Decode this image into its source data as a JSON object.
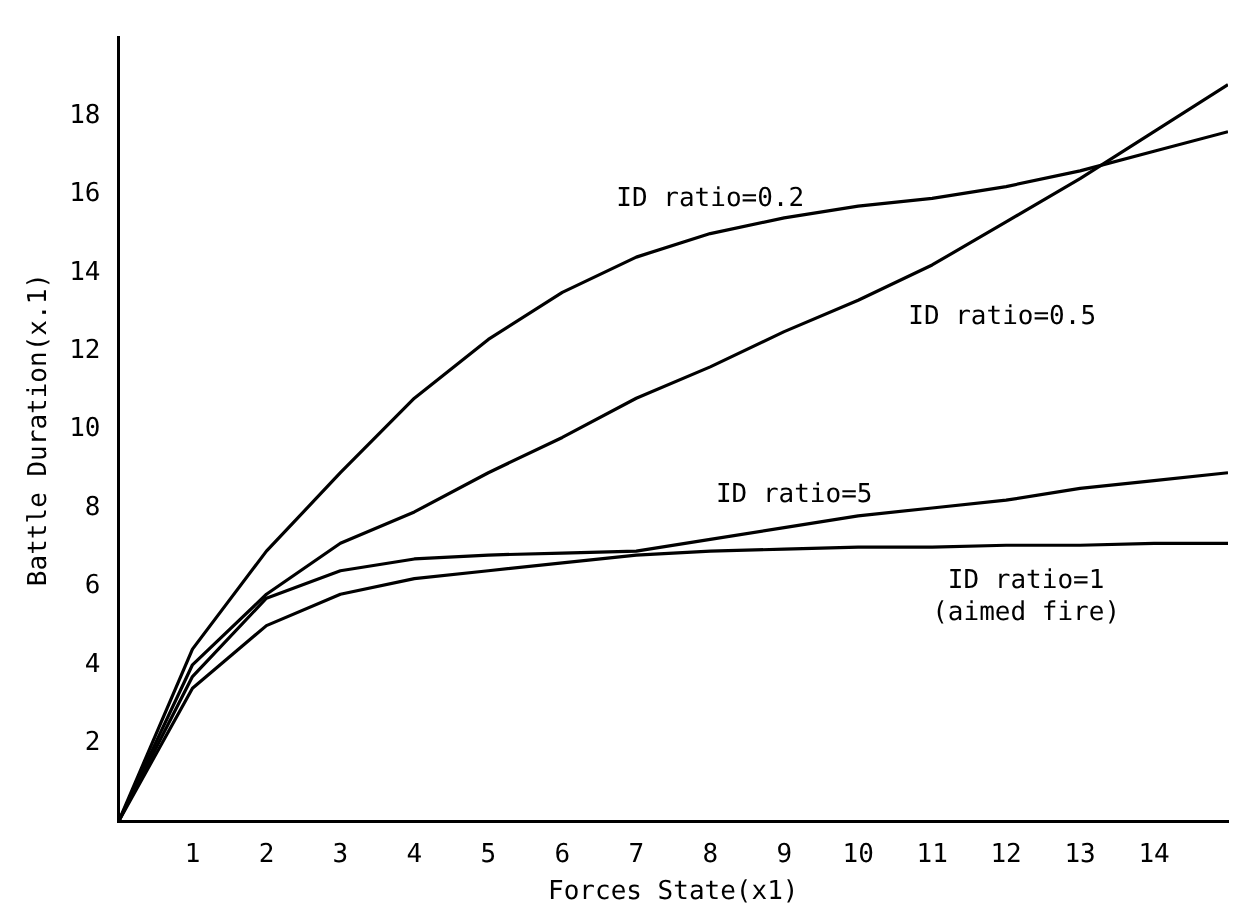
{
  "chart_data": {
    "type": "line",
    "xlabel": "Forces State(x1)",
    "ylabel": "Battle Duration(x.1)",
    "xlim": [
      0,
      15
    ],
    "ylim": [
      0,
      20
    ],
    "xticks": [
      1,
      2,
      3,
      4,
      5,
      6,
      7,
      8,
      9,
      10,
      11,
      12,
      13,
      14
    ],
    "yticks": [
      2,
      4,
      6,
      8,
      10,
      12,
      14,
      16,
      18
    ],
    "grid": false,
    "legend": false,
    "marker": "none",
    "line_style": "solid",
    "x": [
      0,
      1,
      2,
      3,
      4,
      5,
      6,
      7,
      8,
      9,
      10,
      11,
      12,
      13,
      14,
      15
    ],
    "series": [
      {
        "name": "ID ratio=0.2",
        "color": "#000000",
        "values": [
          0,
          4.4,
          6.9,
          8.9,
          10.8,
          12.3,
          13.5,
          14.4,
          15.0,
          15.4,
          15.7,
          15.9,
          16.2,
          16.6,
          17.1,
          17.6
        ]
      },
      {
        "name": "ID ratio=0.5",
        "color": "#000000",
        "values": [
          0,
          4.0,
          5.8,
          7.1,
          7.9,
          8.9,
          9.8,
          10.8,
          11.6,
          12.5,
          13.3,
          14.2,
          15.3,
          16.4,
          17.6,
          18.8
        ]
      },
      {
        "name": "ID ratio=5",
        "color": "#000000",
        "values": [
          0,
          3.7,
          5.7,
          6.4,
          6.7,
          6.8,
          6.85,
          6.9,
          7.2,
          7.5,
          7.8,
          8.0,
          8.2,
          8.5,
          8.7,
          8.9
        ]
      },
      {
        "name": "ID ratio=1",
        "color": "#000000",
        "values": [
          0,
          3.4,
          5.0,
          5.8,
          6.2,
          6.4,
          6.6,
          6.8,
          6.9,
          6.95,
          7.0,
          7.0,
          7.05,
          7.05,
          7.1,
          7.1
        ]
      }
    ],
    "annotations": [
      "(aimed fire)"
    ]
  }
}
